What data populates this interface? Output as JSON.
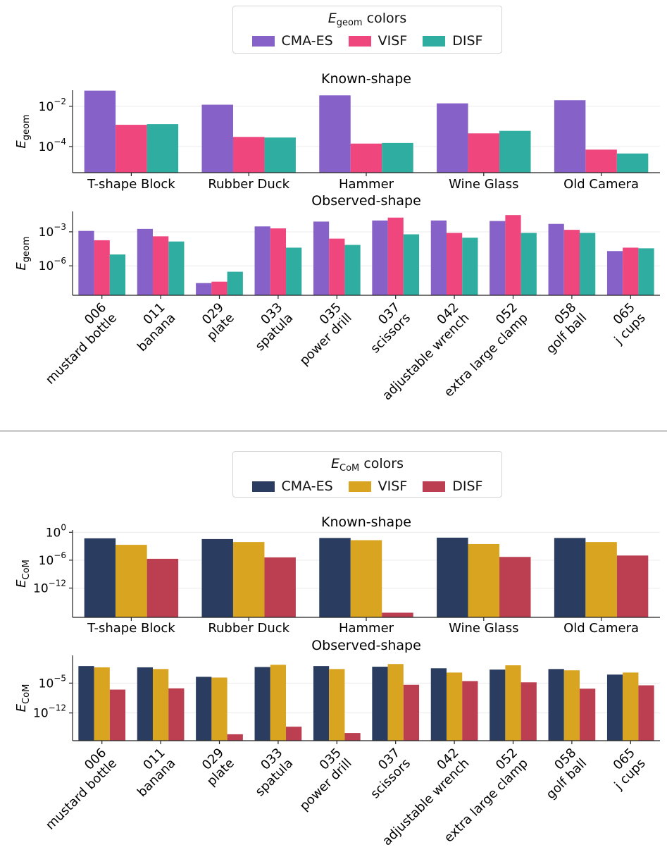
{
  "chart_data": [
    {
      "type": "bar",
      "metric_symbol": "E",
      "metric_sub": "geom",
      "legend_title_suffix": "colors",
      "series_names": [
        "CMA-ES",
        "VISF",
        "DISF"
      ],
      "colors": [
        "#8661c8",
        "#ef467e",
        "#2fada0"
      ],
      "panels": [
        {
          "title": "Known-shape",
          "yscale": "log",
          "ylim_exp": [
            -5.3,
            -1.2
          ],
          "yticks_exp": [
            -2,
            -4
          ],
          "ytick_labels": [
            {
              "base": "10",
              "exp": "−2"
            },
            {
              "base": "10",
              "exp": "−4"
            }
          ],
          "categories": [
            "T-shape Block",
            "Rubber Duck",
            "Hammer",
            "Wine Glass",
            "Old Camera"
          ],
          "rotated": false,
          "series": [
            {
              "name": "CMA-ES",
              "values": [
                0.06,
                0.012,
                0.035,
                0.014,
                0.02
              ]
            },
            {
              "name": "VISF",
              "values": [
                0.0012,
                0.0003,
                0.00014,
                0.00045,
                7e-05
              ]
            },
            {
              "name": "DISF",
              "values": [
                0.0013,
                0.00028,
                0.00015,
                0.0006,
                4.5e-05
              ]
            }
          ]
        },
        {
          "title": "Observed-shape",
          "yscale": "log",
          "ylim_exp": [
            -8.6,
            -1.2
          ],
          "yticks_exp": [
            -3,
            -6
          ],
          "ytick_labels": [
            {
              "base": "10",
              "exp": "−3"
            },
            {
              "base": "10",
              "exp": "−6"
            }
          ],
          "categories": [
            "006\nmustard bottle",
            "011\nbanana",
            "029\nplate",
            "033\nspatula",
            "035\npower drill",
            "037\nscissors",
            "042\nadjustable wrench",
            "052\nextra large clamp",
            "058\ngolf ball",
            "065\nj cups"
          ],
          "rotated": true,
          "series": [
            {
              "name": "CMA-ES",
              "values": [
                0.0012,
                0.0018,
                3e-08,
                0.003,
                0.008,
                0.01,
                0.01,
                0.009,
                0.005,
                2e-05
              ]
            },
            {
              "name": "VISF",
              "values": [
                0.00018,
                0.0004,
                4e-08,
                0.002,
                0.00025,
                0.018,
                0.0008,
                0.03,
                0.0015,
                4e-05
              ]
            },
            {
              "name": "DISF",
              "values": [
                1e-05,
                0.00014,
                3e-07,
                4e-05,
                7e-05,
                0.0006,
                0.0003,
                0.0008,
                0.0008,
                3.5e-05
              ]
            }
          ]
        }
      ]
    },
    {
      "type": "bar",
      "metric_symbol": "E",
      "metric_sub": "CoM",
      "legend_title_suffix": "colors",
      "series_names": [
        "CMA-ES",
        "VISF",
        "DISF"
      ],
      "colors": [
        "#2a3c60",
        "#d9a41f",
        "#bb3f50"
      ],
      "panels": [
        {
          "title": "Known-shape",
          "yscale": "log",
          "ylim_exp": [
            -18.3,
            0.5
          ],
          "yticks_exp": [
            0,
            -6,
            -12
          ],
          "ytick_labels": [
            {
              "base": "10",
              "exp": "0"
            },
            {
              "base": "10",
              "exp": "−6"
            },
            {
              "base": "10",
              "exp": "−12"
            }
          ],
          "categories": [
            "T-shape Block",
            "Rubber Duck",
            "Hammer",
            "Wine Glass",
            "Old Camera"
          ],
          "rotated": false,
          "series": [
            {
              "name": "CMA-ES",
              "values": [
                0.05,
                0.035,
                0.06,
                0.07,
                0.06
              ]
            },
            {
              "name": "VISF",
              "values": [
                0.002,
                0.008,
                0.02,
                0.003,
                0.008
              ]
            },
            {
              "name": "DISF",
              "values": [
                2e-06,
                4e-06,
                5e-18,
                5e-06,
                1e-05
              ]
            }
          ]
        },
        {
          "title": "Observed-shape",
          "yscale": "log",
          "ylim_exp": [
            -18.5,
            1.5
          ],
          "yticks_exp": [
            -5,
            -12
          ],
          "ytick_labels": [
            {
              "base": "10",
              "exp": "−5"
            },
            {
              "base": "10",
              "exp": "−12"
            }
          ],
          "categories": [
            "006\nmustard bottle",
            "011\nbanana",
            "029\nplate",
            "033\nspatula",
            "035\npower drill",
            "037\nscissors",
            "042\nadjustable wrench",
            "052\nextra large clamp",
            "058\ngolf ball",
            "065\nj cups"
          ],
          "rotated": true,
          "series": [
            {
              "name": "CMA-ES",
              "values": [
                0.1,
                0.05,
                0.0003,
                0.06,
                0.1,
                0.07,
                0.03,
                0.015,
                0.02,
                0.001
              ]
            },
            {
              "name": "VISF",
              "values": [
                0.05,
                0.02,
                0.0002,
                0.2,
                0.02,
                0.3,
                0.003,
                0.15,
                0.01,
                0.003
              ]
            },
            {
              "name": "DISF",
              "values": [
                3e-07,
                6e-07,
                1e-17,
                6e-16,
                2e-17,
                4e-06,
                3e-05,
                1.5e-05,
                5e-07,
                3e-06
              ]
            }
          ]
        }
      ]
    }
  ]
}
